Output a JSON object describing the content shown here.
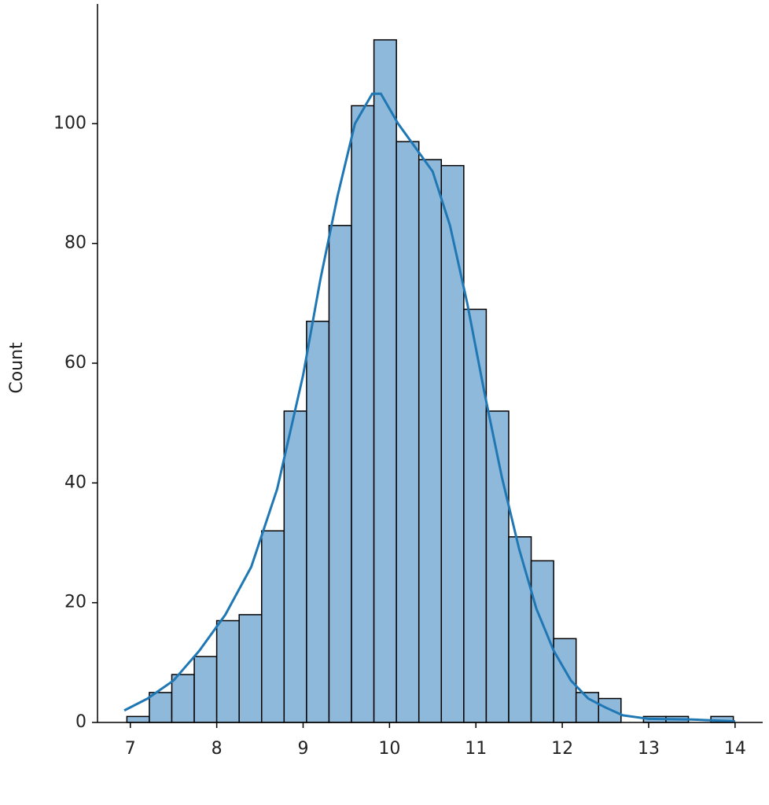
{
  "chart_data": {
    "type": "histogram",
    "ylabel": "Count",
    "bins": [
      6.96,
      7.22,
      7.48,
      7.74,
      8.0,
      8.26,
      8.52,
      8.78,
      9.04,
      9.3,
      9.56,
      9.82,
      10.08,
      10.34,
      10.6,
      10.86,
      11.12,
      11.38,
      11.64,
      11.9,
      12.16,
      12.42,
      12.68,
      12.94,
      13.2,
      13.46,
      13.72,
      13.98
    ],
    "values": [
      1,
      5,
      8,
      11,
      17,
      18,
      32,
      52,
      67,
      83,
      103,
      114,
      97,
      94,
      93,
      69,
      52,
      31,
      27,
      14,
      5,
      4,
      0,
      1,
      1,
      0,
      1
    ],
    "color": "#8fb9da",
    "edgecolor": "#000000",
    "kde": {
      "color": "#1f77b4",
      "x": [
        6.93,
        7.2,
        7.5,
        7.8,
        8.1,
        8.4,
        8.7,
        9.0,
        9.2,
        9.4,
        9.6,
        9.8,
        9.9,
        10.1,
        10.3,
        10.5,
        10.7,
        10.9,
        11.1,
        11.3,
        11.5,
        11.7,
        11.9,
        12.1,
        12.3,
        12.5,
        12.7,
        13.0,
        13.5,
        14.0
      ],
      "values": [
        2,
        4,
        7,
        12,
        18,
        26,
        39,
        58,
        74,
        88,
        100,
        105,
        105,
        100,
        96,
        92,
        83,
        70,
        55,
        41,
        29,
        19,
        12,
        7,
        4,
        2.5,
        1.2,
        0.6,
        0.5,
        0.2
      ]
    },
    "xlim": [
      6.62,
      14.32
    ],
    "ylim": [
      0,
      120
    ],
    "xticks": [
      7,
      8,
      9,
      10,
      11,
      12,
      13,
      14
    ],
    "yticks": [
      0,
      20,
      40,
      60,
      80,
      100
    ]
  }
}
